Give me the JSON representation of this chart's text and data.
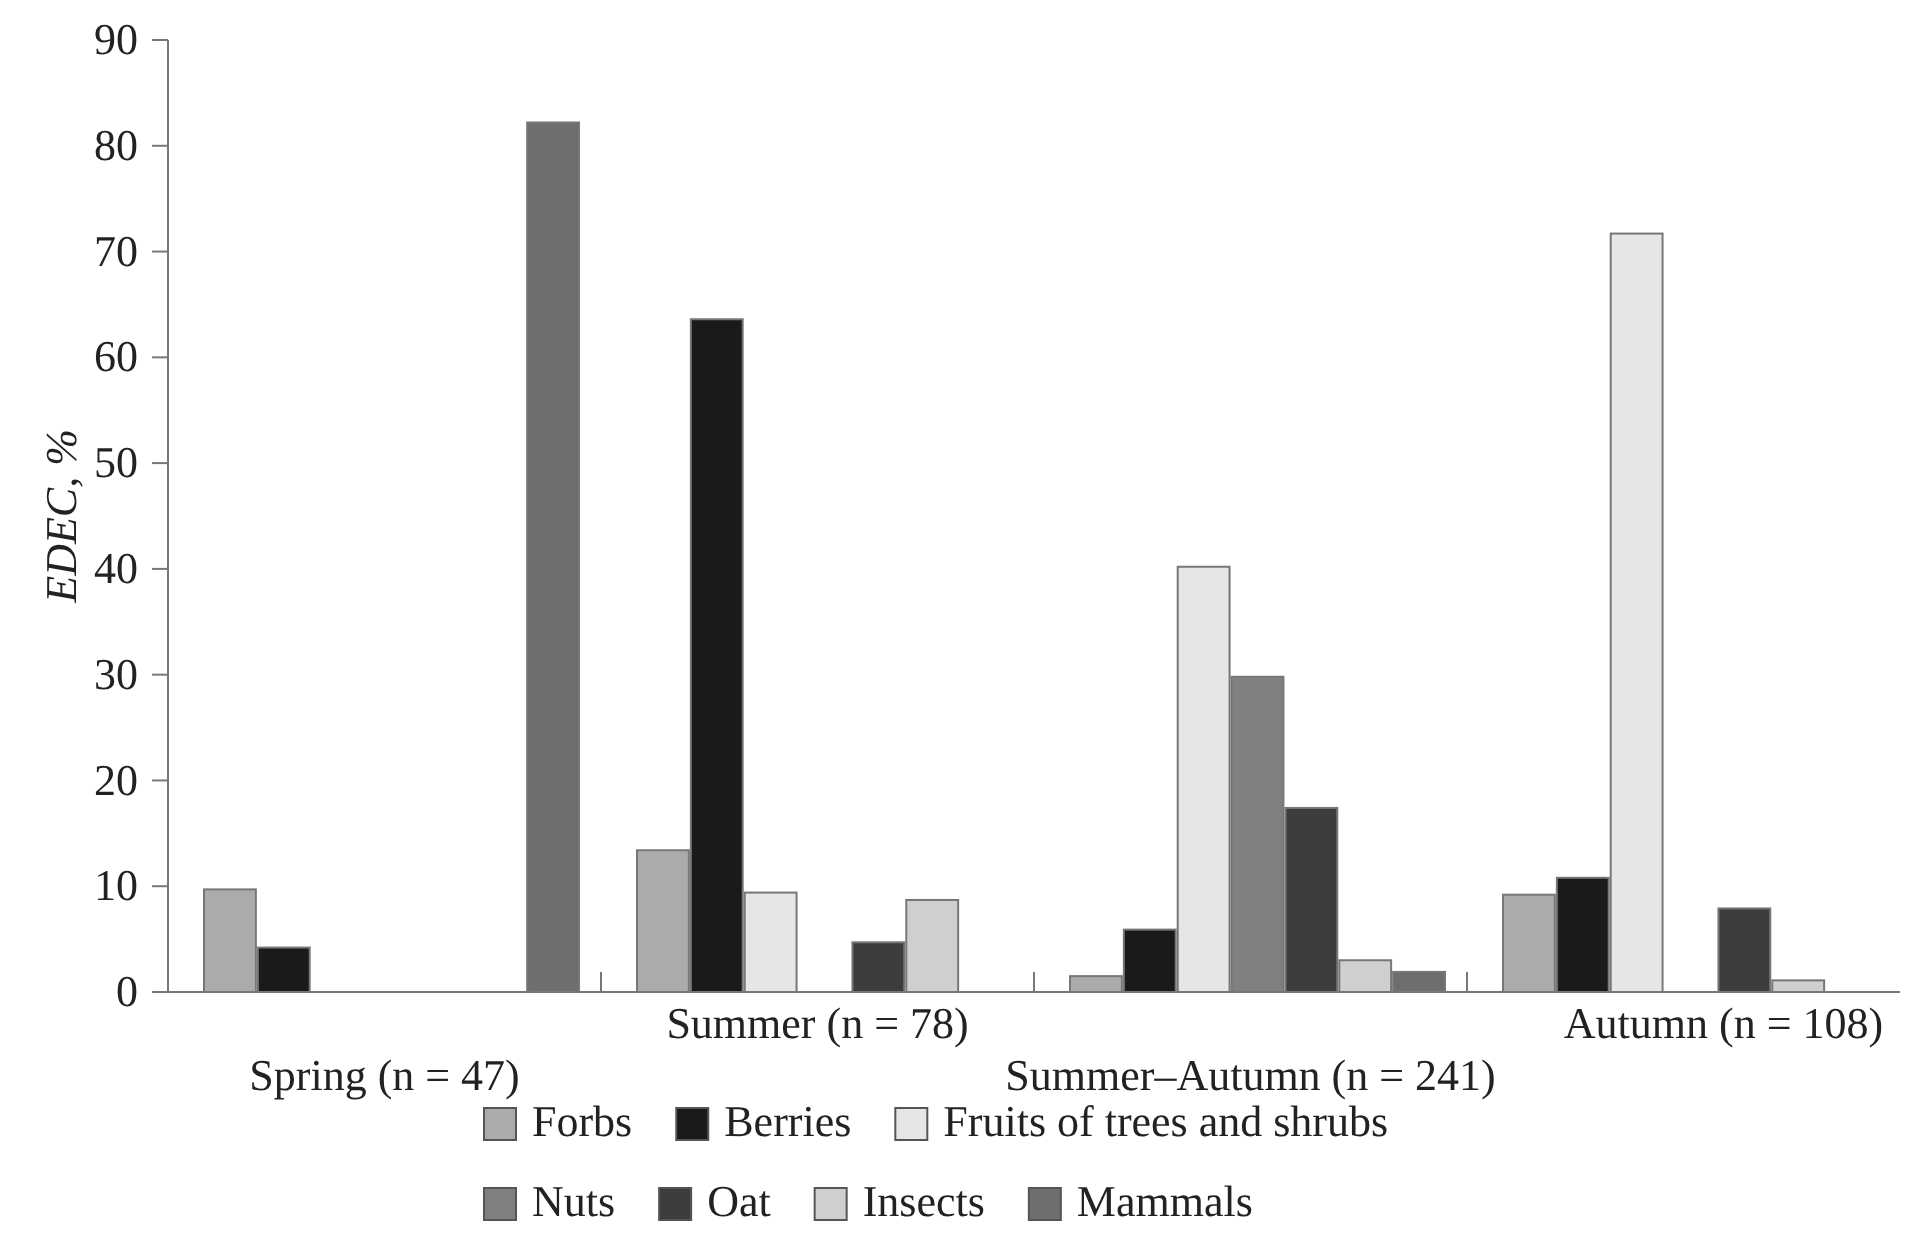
{
  "chart_data": {
    "type": "bar",
    "ylabel": "EDEC, %",
    "categories": [
      "Spring (n = 47)",
      "Summer (n = 78)",
      "Summer–Autumn (n = 241)",
      "Autumn (n = 108)"
    ],
    "ylim": [
      0,
      90
    ],
    "yticks": [
      0,
      10,
      20,
      30,
      40,
      50,
      60,
      70,
      80,
      90
    ],
    "legend": "bottom",
    "grid": false,
    "series": [
      {
        "name": "Forbs",
        "color": "#ababab",
        "values": [
          9.7,
          13.4,
          1.5,
          9.2
        ]
      },
      {
        "name": "Berries",
        "color": "#1a1a1a",
        "values": [
          4.2,
          63.6,
          5.9,
          10.8
        ]
      },
      {
        "name": "Fruits of trees and shrubs",
        "color": "#e6e6e6",
        "values": [
          null,
          9.4,
          40.2,
          71.7
        ]
      },
      {
        "name": "Nuts",
        "color": "#808080",
        "values": [
          null,
          null,
          29.8,
          null
        ]
      },
      {
        "name": "Oat",
        "color": "#3d3d3d",
        "values": [
          null,
          4.7,
          17.4,
          7.9
        ]
      },
      {
        "name": "Insects",
        "color": "#cfcfcf",
        "values": [
          null,
          8.7,
          3.0,
          1.1
        ]
      },
      {
        "name": "Mammals",
        "color": "#6e6e6e",
        "values": [
          82.2,
          null,
          1.9,
          null
        ]
      }
    ]
  }
}
